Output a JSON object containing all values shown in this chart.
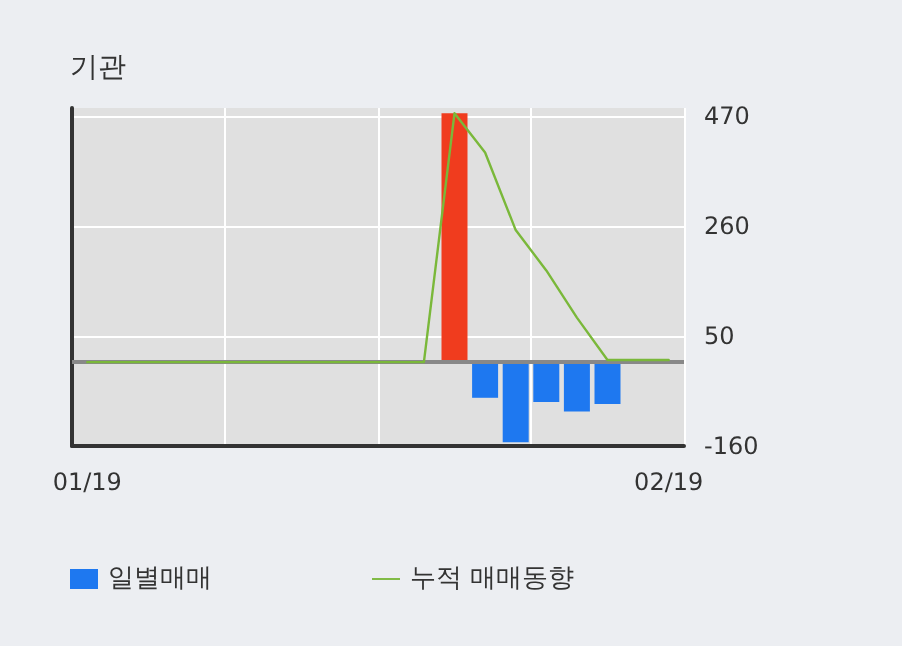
{
  "chart_data": {
    "type": "bar",
    "title": "기관",
    "categories": [
      "01/19",
      null,
      null,
      null,
      null,
      null,
      null,
      null,
      null,
      null,
      null,
      null,
      null,
      null,
      null,
      null,
      null,
      null,
      null,
      "02/19"
    ],
    "series": [
      {
        "name": "일별매매",
        "color": "#1e78f0",
        "colors": [
          "#1e78f0",
          "#1e78f0",
          "#1e78f0",
          "#1e78f0",
          "#1e78f0",
          "#1e78f0",
          "#1e78f0",
          "#1e78f0",
          "#1e78f0",
          "#1e78f0",
          "#1e78f0",
          "#1e78f0",
          "#f03c1e",
          "#1e78f0",
          "#1e78f0",
          "#1e78f0",
          "#1e78f0",
          "#1e78f0",
          "#1e78f0",
          "#1e78f0"
        ],
        "values": [
          null,
          null,
          null,
          null,
          null,
          null,
          null,
          null,
          null,
          null,
          null,
          null,
          475,
          -68,
          -153,
          -76,
          -94,
          -80,
          null,
          null
        ]
      },
      {
        "name": "누적 매매동향",
        "type": "line",
        "color": "#7ab83a",
        "values": [
          0,
          0,
          0,
          0,
          0,
          0,
          0,
          0,
          0,
          0,
          0,
          0,
          475,
          400,
          252,
          175,
          85,
          4,
          4,
          4
        ]
      }
    ],
    "ylim": [
      -160,
      485
    ],
    "yticks": [
      -160,
      50,
      260,
      470
    ],
    "ref_lines": [
      {
        "axis": "y",
        "value": 0,
        "color": "#888888"
      }
    ],
    "grid": true,
    "legend": "bottom",
    "marker": "none",
    "line_style": "solid"
  }
}
